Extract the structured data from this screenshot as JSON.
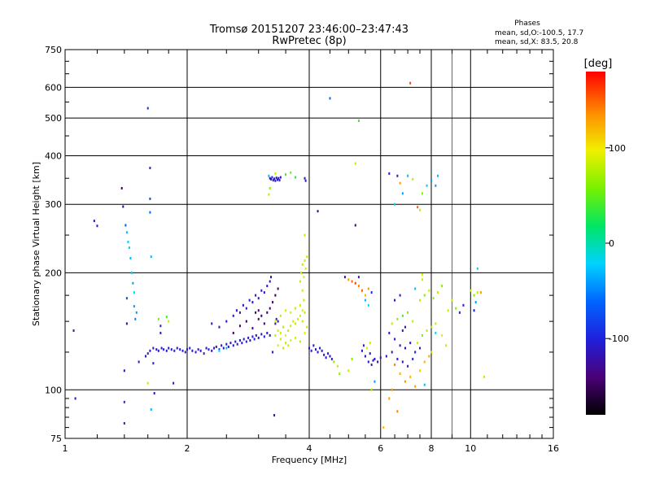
{
  "chart_data": {
    "type": "scatter",
    "title": "Tromsø 20151207 23:46:00–23:47:43",
    "subtitle": "RwPretec (8p)",
    "xlabel": "Frequency [MHz]",
    "ylabel": "Stationary phase Virtual Height [km]",
    "x_scale": "log",
    "y_scale": "log",
    "xlim": [
      1,
      16
    ],
    "ylim": [
      75,
      750
    ],
    "x_ticks": [
      1,
      2,
      4,
      6,
      8,
      10,
      16
    ],
    "x_tick_labels": [
      "1",
      "2",
      "4",
      "6",
      "8",
      "10",
      "16"
    ],
    "y_ticks": [
      75,
      100,
      200,
      300,
      400,
      500,
      600,
      750
    ],
    "y_tick_labels": [
      "75",
      "100",
      "200",
      "300",
      "400",
      "500",
      "600",
      "750"
    ],
    "grid": true,
    "info": {
      "heading": "Phases",
      "line1": "mean, sd,O:-100.5, 17.7",
      "line2": "mean, sd,X:  83.5, 20.8"
    },
    "colorbar": {
      "label": "[deg]",
      "range": [
        -180,
        180
      ],
      "ticks": [
        100,
        0,
        -100
      ],
      "tick_labels": [
        "100",
        "0",
        "-100"
      ],
      "position": "right"
    },
    "points": [
      [
        1.05,
        142,
        -110
      ],
      [
        1.06,
        95,
        -110
      ],
      [
        1.18,
        272,
        -110
      ],
      [
        1.2,
        264,
        -110
      ],
      [
        1.38,
        330,
        -150
      ],
      [
        1.39,
        296,
        -130
      ],
      [
        1.4,
        112,
        -120
      ],
      [
        1.4,
        93,
        -100
      ],
      [
        1.4,
        82,
        -110
      ],
      [
        1.41,
        265,
        -70
      ],
      [
        1.42,
        254,
        -30
      ],
      [
        1.43,
        240,
        -20
      ],
      [
        1.44,
        232,
        -10
      ],
      [
        1.45,
        218,
        -30
      ],
      [
        1.46,
        200,
        -20
      ],
      [
        1.47,
        188,
        -40
      ],
      [
        1.48,
        178,
        -20
      ],
      [
        1.48,
        164,
        -40
      ],
      [
        1.49,
        152,
        -50
      ],
      [
        1.42,
        148,
        -120
      ],
      [
        1.42,
        172,
        -80
      ],
      [
        1.5,
        158,
        -40
      ],
      [
        1.52,
        118,
        -110
      ],
      [
        1.6,
        530,
        -90
      ],
      [
        1.62,
        372,
        -100
      ],
      [
        1.62,
        310,
        -80
      ],
      [
        1.62,
        286,
        -60
      ],
      [
        1.63,
        220,
        -30
      ],
      [
        1.6,
        104,
        80
      ],
      [
        1.63,
        89,
        -30
      ],
      [
        1.65,
        117,
        -100
      ],
      [
        1.66,
        98,
        -110
      ],
      [
        1.7,
        152,
        60
      ],
      [
        1.72,
        140,
        -110
      ],
      [
        1.72,
        146,
        -100
      ],
      [
        1.78,
        154,
        40
      ],
      [
        1.8,
        150,
        80
      ],
      [
        1.85,
        104,
        -110
      ],
      [
        1.58,
        122,
        -110
      ],
      [
        1.6,
        124,
        -100
      ],
      [
        1.62,
        126,
        -115
      ],
      [
        1.65,
        128,
        -108
      ],
      [
        1.68,
        127,
        -112
      ],
      [
        1.7,
        126,
        -105
      ],
      [
        1.73,
        128,
        -110
      ],
      [
        1.75,
        127,
        -100
      ],
      [
        1.78,
        126,
        -115
      ],
      [
        1.8,
        128,
        -108
      ],
      [
        1.83,
        127,
        -112
      ],
      [
        1.86,
        126,
        -105
      ],
      [
        1.89,
        128,
        -110
      ],
      [
        1.92,
        127,
        -100
      ],
      [
        1.95,
        126,
        -112
      ],
      [
        1.98,
        125,
        -108
      ],
      [
        2.0,
        127,
        -110
      ],
      [
        2.03,
        128,
        -104
      ],
      [
        2.06,
        126,
        -112
      ],
      [
        2.1,
        125,
        -108
      ],
      [
        2.13,
        127,
        -110
      ],
      [
        2.16,
        126,
        -115
      ],
      [
        2.2,
        124,
        -105
      ],
      [
        2.23,
        128,
        -110
      ],
      [
        2.26,
        127,
        -100
      ],
      [
        2.3,
        126,
        -112
      ],
      [
        2.33,
        128,
        -108
      ],
      [
        2.36,
        129,
        -110
      ],
      [
        2.4,
        127,
        -104
      ],
      [
        2.43,
        130,
        -112
      ],
      [
        2.46,
        128,
        -108
      ],
      [
        2.5,
        131,
        -110
      ],
      [
        2.53,
        129,
        -104
      ],
      [
        2.56,
        132,
        -112
      ],
      [
        2.6,
        130,
        -108
      ],
      [
        2.63,
        133,
        -110
      ],
      [
        2.66,
        131,
        -104
      ],
      [
        2.7,
        134,
        -112
      ],
      [
        2.73,
        132,
        -108
      ],
      [
        2.76,
        135,
        -110
      ],
      [
        2.8,
        133,
        -104
      ],
      [
        2.83,
        136,
        -112
      ],
      [
        2.86,
        134,
        -108
      ],
      [
        2.9,
        137,
        -110
      ],
      [
        2.93,
        135,
        -104
      ],
      [
        2.96,
        138,
        -112
      ],
      [
        3.0,
        136,
        -108
      ],
      [
        3.05,
        139,
        -110
      ],
      [
        3.1,
        137,
        -104
      ],
      [
        3.15,
        140,
        -112
      ],
      [
        3.2,
        138,
        -108
      ],
      [
        2.3,
        148,
        -110
      ],
      [
        2.4,
        145,
        -112
      ],
      [
        2.5,
        150,
        -105
      ],
      [
        2.6,
        155,
        -108
      ],
      [
        2.65,
        160,
        -110
      ],
      [
        2.7,
        158,
        -115
      ],
      [
        2.75,
        165,
        -108
      ],
      [
        2.8,
        162,
        -112
      ],
      [
        2.85,
        170,
        -110
      ],
      [
        2.9,
        168,
        -108
      ],
      [
        2.95,
        175,
        -112
      ],
      [
        3.0,
        172,
        -110
      ],
      [
        3.05,
        180,
        -108
      ],
      [
        3.1,
        178,
        -112
      ],
      [
        3.15,
        185,
        -110
      ],
      [
        3.2,
        190,
        -108
      ],
      [
        3.22,
        195,
        -130
      ],
      [
        2.6,
        140,
        -150
      ],
      [
        2.7,
        146,
        -140
      ],
      [
        2.8,
        150,
        -150
      ],
      [
        2.9,
        144,
        -135
      ],
      [
        3.0,
        152,
        -145
      ],
      [
        3.1,
        148,
        -140
      ],
      [
        3.15,
        158,
        -150
      ],
      [
        3.2,
        162,
        -140
      ],
      [
        3.25,
        168,
        -145
      ],
      [
        3.3,
        175,
        -150
      ],
      [
        3.35,
        182,
        -140
      ],
      [
        3.0,
        160,
        -140
      ],
      [
        2.95,
        158,
        -150
      ],
      [
        3.05,
        155,
        -145
      ],
      [
        3.25,
        125,
        -110
      ],
      [
        3.28,
        86,
        -120
      ],
      [
        3.3,
        148,
        -110
      ],
      [
        3.32,
        152,
        -108
      ],
      [
        3.35,
        150,
        -112
      ],
      [
        2.5,
        128,
        -30
      ],
      [
        2.4,
        126,
        -20
      ],
      [
        3.18,
        355,
        -30
      ],
      [
        3.2,
        350,
        -110
      ],
      [
        3.22,
        348,
        -110
      ],
      [
        3.24,
        352,
        -105
      ],
      [
        3.26,
        346,
        -110
      ],
      [
        3.28,
        349,
        -110
      ],
      [
        3.3,
        345,
        -108
      ],
      [
        3.32,
        351,
        -110
      ],
      [
        3.34,
        347,
        -105
      ],
      [
        3.36,
        350,
        -110
      ],
      [
        3.38,
        346,
        -110
      ],
      [
        3.4,
        352,
        -108
      ],
      [
        3.3,
        360,
        80
      ],
      [
        3.2,
        330,
        60
      ],
      [
        3.18,
        318,
        80
      ],
      [
        3.5,
        358,
        40
      ],
      [
        3.6,
        362,
        60
      ],
      [
        3.7,
        352,
        30
      ],
      [
        3.9,
        350,
        -110
      ],
      [
        3.92,
        345,
        -100
      ],
      [
        4.5,
        562,
        -60
      ],
      [
        4.2,
        288,
        -130
      ],
      [
        5.3,
        492,
        40
      ],
      [
        5.2,
        382,
        80
      ],
      [
        5.2,
        265,
        -140
      ],
      [
        3.3,
        138,
        80
      ],
      [
        3.35,
        142,
        90
      ],
      [
        3.4,
        140,
        85
      ],
      [
        3.45,
        145,
        80
      ],
      [
        3.5,
        138,
        95
      ],
      [
        3.55,
        142,
        80
      ],
      [
        3.6,
        146,
        85
      ],
      [
        3.65,
        150,
        90
      ],
      [
        3.7,
        148,
        80
      ],
      [
        3.75,
        152,
        85
      ],
      [
        3.8,
        155,
        90
      ],
      [
        3.85,
        150,
        80
      ],
      [
        3.3,
        150,
        95
      ],
      [
        3.4,
        155,
        80
      ],
      [
        3.5,
        160,
        85
      ],
      [
        3.6,
        158,
        90
      ],
      [
        3.7,
        162,
        80
      ],
      [
        3.8,
        165,
        85
      ],
      [
        3.85,
        160,
        90
      ],
      [
        3.9,
        158,
        80
      ],
      [
        3.4,
        135,
        85
      ],
      [
        3.5,
        132,
        80
      ],
      [
        3.6,
        134,
        90
      ],
      [
        3.7,
        136,
        85
      ],
      [
        3.8,
        133,
        80
      ],
      [
        3.9,
        140,
        95
      ],
      [
        3.95,
        145,
        80
      ],
      [
        3.35,
        130,
        90
      ],
      [
        3.45,
        128,
        80
      ],
      [
        3.55,
        130,
        85
      ],
      [
        3.8,
        190,
        80
      ],
      [
        3.82,
        200,
        85
      ],
      [
        3.85,
        210,
        80
      ],
      [
        3.88,
        195,
        90
      ],
      [
        3.9,
        215,
        80
      ],
      [
        3.92,
        205,
        85
      ],
      [
        3.95,
        220,
        80
      ],
      [
        3.9,
        250,
        80
      ],
      [
        3.85,
        180,
        85
      ],
      [
        3.88,
        170,
        80
      ],
      [
        4.0,
        128,
        -110
      ],
      [
        4.05,
        126,
        -105
      ],
      [
        4.1,
        130,
        -110
      ],
      [
        4.15,
        127,
        -108
      ],
      [
        4.2,
        125,
        -112
      ],
      [
        4.25,
        128,
        -110
      ],
      [
        4.3,
        126,
        -108
      ],
      [
        4.35,
        123,
        -112
      ],
      [
        4.4,
        121,
        -110
      ],
      [
        4.45,
        124,
        -108
      ],
      [
        4.5,
        122,
        -112
      ],
      [
        4.55,
        120,
        -110
      ],
      [
        4.6,
        118,
        60
      ],
      [
        4.7,
        115,
        80
      ],
      [
        4.75,
        110,
        70
      ],
      [
        5.0,
        112,
        80
      ],
      [
        5.1,
        120,
        60
      ],
      [
        4.9,
        195,
        -120
      ],
      [
        5.0,
        192,
        130
      ],
      [
        5.1,
        190,
        150
      ],
      [
        5.2,
        188,
        160
      ],
      [
        5.3,
        185,
        140
      ],
      [
        5.4,
        180,
        150
      ],
      [
        5.5,
        175,
        120
      ],
      [
        5.6,
        182,
        130
      ],
      [
        5.3,
        195,
        -110
      ],
      [
        5.5,
        170,
        -30
      ],
      [
        5.6,
        165,
        -20
      ],
      [
        5.7,
        178,
        -100
      ],
      [
        5.4,
        126,
        -110
      ],
      [
        5.5,
        122,
        -110
      ],
      [
        5.6,
        118,
        -105
      ],
      [
        5.7,
        116,
        -110
      ],
      [
        5.8,
        120,
        -108
      ],
      [
        5.9,
        118,
        -112
      ],
      [
        6.0,
        121,
        -110
      ],
      [
        5.45,
        130,
        -100
      ],
      [
        5.65,
        124,
        -112
      ],
      [
        5.75,
        119,
        -108
      ],
      [
        5.55,
        128,
        90
      ],
      [
        5.65,
        132,
        80
      ],
      [
        5.7,
        100,
        70
      ],
      [
        5.8,
        105,
        -40
      ],
      [
        6.3,
        360,
        -110
      ],
      [
        6.5,
        300,
        -20
      ],
      [
        6.6,
        355,
        -110
      ],
      [
        6.7,
        340,
        130
      ],
      [
        6.8,
        320,
        -40
      ],
      [
        7.0,
        355,
        -30
      ],
      [
        7.2,
        348,
        80
      ],
      [
        7.4,
        295,
        150
      ],
      [
        7.5,
        290,
        80
      ],
      [
        7.6,
        320,
        60
      ],
      [
        7.8,
        335,
        -20
      ],
      [
        8.0,
        345,
        -40
      ],
      [
        8.2,
        335,
        -40
      ],
      [
        8.3,
        355,
        -30
      ],
      [
        7.1,
        615,
        160
      ],
      [
        6.4,
        148,
        80
      ],
      [
        6.6,
        152,
        60
      ],
      [
        6.8,
        155,
        40
      ],
      [
        7.0,
        158,
        60
      ],
      [
        7.2,
        150,
        80
      ],
      [
        6.3,
        140,
        -110
      ],
      [
        6.5,
        135,
        -100
      ],
      [
        6.7,
        130,
        -110
      ],
      [
        6.9,
        128,
        -108
      ],
      [
        7.1,
        132,
        -112
      ],
      [
        7.3,
        125,
        -110
      ],
      [
        7.5,
        128,
        -108
      ],
      [
        6.2,
        122,
        -110
      ],
      [
        6.4,
        125,
        -112
      ],
      [
        6.6,
        120,
        -108
      ],
      [
        6.8,
        118,
        -110
      ],
      [
        7.0,
        115,
        -105
      ],
      [
        7.2,
        120,
        -100
      ],
      [
        7.4,
        132,
        80
      ],
      [
        7.6,
        138,
        60
      ],
      [
        7.8,
        142,
        80
      ],
      [
        8.0,
        145,
        70
      ],
      [
        8.2,
        148,
        80
      ],
      [
        7.5,
        170,
        80
      ],
      [
        7.7,
        175,
        60
      ],
      [
        7.9,
        180,
        80
      ],
      [
        8.1,
        172,
        70
      ],
      [
        8.3,
        178,
        80
      ],
      [
        8.5,
        185,
        60
      ],
      [
        7.3,
        182,
        -30
      ],
      [
        7.6,
        192,
        80
      ],
      [
        7.6,
        198,
        90
      ],
      [
        6.1,
        80,
        120
      ],
      [
        6.3,
        95,
        130
      ],
      [
        6.4,
        100,
        130
      ],
      [
        6.6,
        88,
        140
      ],
      [
        6.7,
        110,
        120
      ],
      [
        6.9,
        105,
        130
      ],
      [
        7.1,
        108,
        120
      ],
      [
        7.3,
        102,
        130
      ],
      [
        7.5,
        112,
        110
      ],
      [
        7.7,
        118,
        120
      ],
      [
        7.9,
        122,
        130
      ],
      [
        8.0,
        125,
        80
      ],
      [
        8.2,
        140,
        -20
      ],
      [
        7.7,
        103,
        -30
      ],
      [
        6.5,
        116,
        140
      ],
      [
        6.5,
        170,
        -110
      ],
      [
        6.7,
        175,
        -100
      ],
      [
        6.8,
        142,
        -110
      ],
      [
        6.9,
        145,
        -100
      ],
      [
        9.0,
        170,
        80
      ],
      [
        9.2,
        162,
        60
      ],
      [
        9.4,
        158,
        -100
      ],
      [
        9.6,
        165,
        -110
      ],
      [
        10.0,
        180,
        80
      ],
      [
        10.2,
        175,
        60
      ],
      [
        10.4,
        178,
        80
      ],
      [
        10.6,
        178,
        130
      ],
      [
        10.3,
        168,
        -40
      ],
      [
        10.2,
        160,
        -110
      ],
      [
        10.8,
        108,
        80
      ],
      [
        10.4,
        205,
        -20
      ],
      [
        8.5,
        138,
        90
      ],
      [
        8.7,
        130,
        80
      ],
      [
        8.8,
        160,
        80
      ]
    ]
  }
}
